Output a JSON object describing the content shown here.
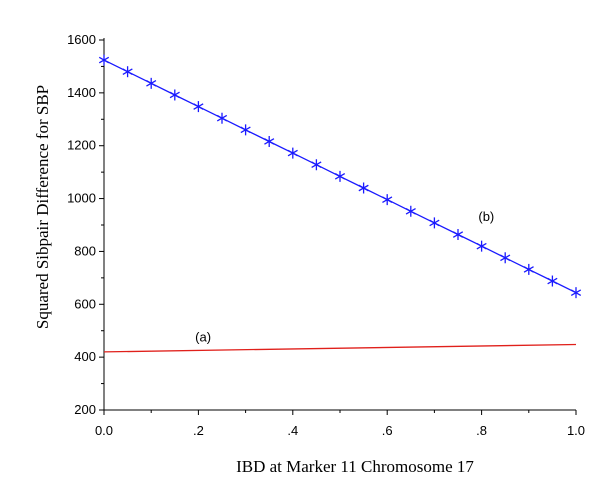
{
  "chart_data": {
    "type": "line",
    "xlabel": "IBD at Marker 11 Chromosome 17",
    "ylabel": "Squared Sibpair Difference for SBP",
    "xlim": [
      0,
      1
    ],
    "ylim": [
      200,
      1600
    ],
    "x_ticks": [
      0,
      0.2,
      0.4,
      0.6,
      0.8,
      1.0
    ],
    "x_tick_labels": [
      "0.0",
      ".2",
      ".4",
      ".6",
      ".8",
      "1.0"
    ],
    "y_ticks": [
      200,
      400,
      600,
      800,
      1000,
      1200,
      1400,
      1600
    ],
    "y_tick_labels": [
      "200",
      "400",
      "600",
      "800",
      "1000",
      "1200",
      "1400",
      "1600"
    ],
    "grid": false,
    "series": [
      {
        "name": "(a)",
        "color": "#e0201b",
        "marker": "none",
        "x": [
          0,
          1
        ],
        "y": [
          420,
          448
        ]
      },
      {
        "name": "(b)",
        "color": "#1a1aff",
        "marker": "asterisk",
        "x": [
          0,
          0.05,
          0.1,
          0.15,
          0.2,
          0.25,
          0.3,
          0.35,
          0.4,
          0.45,
          0.5,
          0.55,
          0.6,
          0.65,
          0.7,
          0.75,
          0.8,
          0.85,
          0.9,
          0.95,
          1.0
        ],
        "y": [
          1524,
          1480,
          1436,
          1392,
          1348,
          1304,
          1260,
          1216,
          1172,
          1128,
          1084,
          1040,
          996,
          952,
          908,
          864,
          820,
          776,
          732,
          688,
          644
        ]
      }
    ],
    "annotations": [
      {
        "text": "(a)",
        "x": 0.21,
        "y": 460,
        "series": 0
      },
      {
        "text": "(b)",
        "x": 0.81,
        "y": 915,
        "series": 1
      }
    ]
  }
}
